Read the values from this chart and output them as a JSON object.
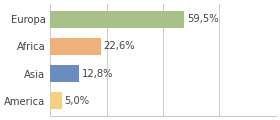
{
  "categories": [
    "Europa",
    "Africa",
    "Asia",
    "America"
  ],
  "values": [
    59.5,
    22.6,
    12.8,
    5.0
  ],
  "labels": [
    "59,5%",
    "22,6%",
    "12,8%",
    "5,0%"
  ],
  "bar_colors": [
    "#a8c08a",
    "#f0b07a",
    "#6b8cbf",
    "#f5d080"
  ],
  "xlim": [
    0,
    100
  ],
  "background_color": "#ffffff",
  "bar_height": 0.62,
  "label_fontsize": 7.2,
  "tick_fontsize": 7.2
}
